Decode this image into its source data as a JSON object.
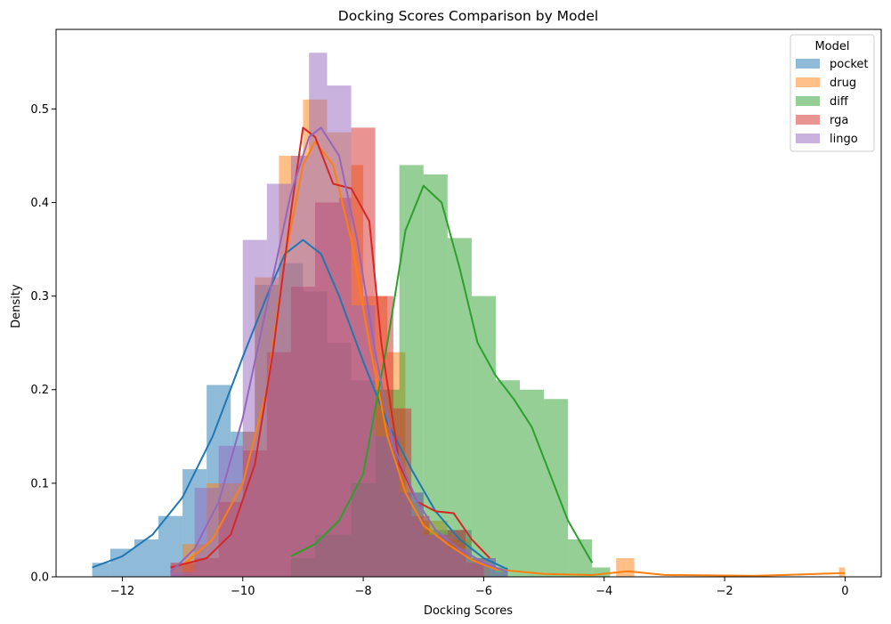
{
  "chart_data": {
    "type": "histogram",
    "title": "Docking Scores Comparison by Model",
    "xlabel": "Docking Scores",
    "ylabel": "Density",
    "xlim": [
      -13.1,
      0.6
    ],
    "ylim": [
      0,
      0.585
    ],
    "xticks": [
      -12,
      -10,
      -8,
      -6,
      -4,
      -2,
      0
    ],
    "xtick_labels": [
      "−12",
      "−10",
      "−8",
      "−6",
      "−4",
      "−2",
      "0"
    ],
    "yticks": [
      0.0,
      0.1,
      0.2,
      0.3,
      0.4,
      0.5
    ],
    "ytick_labels": [
      "0.0",
      "0.1",
      "0.2",
      "0.3",
      "0.4",
      "0.5"
    ],
    "grid": false,
    "legend": {
      "title": "Model",
      "placement": "top-right"
    },
    "series": [
      {
        "name": "pocket",
        "color": "#1f77b4",
        "bins": [
          [
            -12.5,
            -12.2,
            0.015
          ],
          [
            -12.2,
            -11.8,
            0.03
          ],
          [
            -11.8,
            -11.4,
            0.04
          ],
          [
            -11.4,
            -11.0,
            0.065
          ],
          [
            -11.0,
            -10.6,
            0.115
          ],
          [
            -10.6,
            -10.2,
            0.205
          ],
          [
            -10.2,
            -9.8,
            0.155
          ],
          [
            -9.8,
            -9.4,
            0.312
          ],
          [
            -9.4,
            -9.0,
            0.335
          ],
          [
            -9.0,
            -8.6,
            0.305
          ],
          [
            -8.6,
            -8.2,
            0.25
          ],
          [
            -8.2,
            -7.8,
            0.21
          ],
          [
            -7.8,
            -7.4,
            0.15
          ],
          [
            -7.4,
            -7.0,
            0.09
          ],
          [
            -7.0,
            -6.6,
            0.05
          ],
          [
            -6.6,
            -6.2,
            0.05
          ],
          [
            -6.2,
            -5.8,
            0.02
          ],
          [
            -5.8,
            -5.6,
            0.01
          ]
        ],
        "kde": [
          [
            -12.5,
            0.01
          ],
          [
            -12.0,
            0.022
          ],
          [
            -11.5,
            0.045
          ],
          [
            -11.0,
            0.085
          ],
          [
            -10.5,
            0.15
          ],
          [
            -10.0,
            0.235
          ],
          [
            -9.6,
            0.3
          ],
          [
            -9.3,
            0.345
          ],
          [
            -9.0,
            0.36
          ],
          [
            -8.7,
            0.345
          ],
          [
            -8.4,
            0.3
          ],
          [
            -8.0,
            0.23
          ],
          [
            -7.6,
            0.165
          ],
          [
            -7.2,
            0.115
          ],
          [
            -6.8,
            0.07
          ],
          [
            -6.4,
            0.04
          ],
          [
            -6.0,
            0.02
          ],
          [
            -5.6,
            0.008
          ]
        ]
      },
      {
        "name": "drug",
        "color": "#ff7f0e",
        "bins": [
          [
            -11.0,
            -10.6,
            0.035
          ],
          [
            -10.6,
            -10.0,
            0.1
          ],
          [
            -10.0,
            -9.8,
            0.155
          ],
          [
            -9.8,
            -9.4,
            0.32
          ],
          [
            -9.4,
            -9.0,
            0.45
          ],
          [
            -9.0,
            -8.6,
            0.51
          ],
          [
            -8.6,
            -8.2,
            0.475
          ],
          [
            -8.2,
            -8.0,
            0.44
          ],
          [
            -8.0,
            -7.6,
            0.3
          ],
          [
            -7.6,
            -7.3,
            0.24
          ],
          [
            -7.3,
            -7.0,
            0.08
          ],
          [
            -7.0,
            -6.6,
            0.06
          ],
          [
            -6.6,
            -6.2,
            0.04
          ],
          [
            -6.2,
            -5.9,
            0.02
          ],
          [
            -3.8,
            -3.5,
            0.02
          ],
          [
            -0.1,
            0.0,
            0.01
          ]
        ],
        "kde": [
          [
            -11.0,
            0.012
          ],
          [
            -10.5,
            0.04
          ],
          [
            -10.0,
            0.1
          ],
          [
            -9.6,
            0.2
          ],
          [
            -9.3,
            0.34
          ],
          [
            -9.0,
            0.44
          ],
          [
            -8.8,
            0.465
          ],
          [
            -8.5,
            0.44
          ],
          [
            -8.2,
            0.36
          ],
          [
            -7.9,
            0.25
          ],
          [
            -7.6,
            0.15
          ],
          [
            -7.3,
            0.09
          ],
          [
            -7.0,
            0.055
          ],
          [
            -6.6,
            0.035
          ],
          [
            -6.2,
            0.018
          ],
          [
            -5.8,
            0.008
          ],
          [
            -5.0,
            0.003
          ],
          [
            -4.2,
            0.002
          ],
          [
            -3.6,
            0.006
          ],
          [
            -3.0,
            0.002
          ],
          [
            -1.5,
            0.001
          ],
          [
            0.0,
            0.004
          ]
        ]
      },
      {
        "name": "diff",
        "color": "#2ca02c",
        "bins": [
          [
            -9.2,
            -8.8,
            0.02
          ],
          [
            -8.8,
            -8.2,
            0.045
          ],
          [
            -8.2,
            -7.8,
            0.1
          ],
          [
            -7.8,
            -7.4,
            0.2
          ],
          [
            -7.4,
            -7.0,
            0.44
          ],
          [
            -7.0,
            -6.6,
            0.43
          ],
          [
            -6.6,
            -6.2,
            0.362
          ],
          [
            -6.2,
            -5.8,
            0.3
          ],
          [
            -5.8,
            -5.4,
            0.21
          ],
          [
            -5.4,
            -5.0,
            0.2
          ],
          [
            -5.0,
            -4.6,
            0.19
          ],
          [
            -4.6,
            -4.2,
            0.04
          ],
          [
            -4.2,
            -3.9,
            0.01
          ]
        ],
        "kde": [
          [
            -9.2,
            0.022
          ],
          [
            -8.8,
            0.035
          ],
          [
            -8.4,
            0.06
          ],
          [
            -8.0,
            0.11
          ],
          [
            -7.6,
            0.25
          ],
          [
            -7.3,
            0.37
          ],
          [
            -7.0,
            0.418
          ],
          [
            -6.7,
            0.4
          ],
          [
            -6.4,
            0.33
          ],
          [
            -6.1,
            0.25
          ],
          [
            -5.8,
            0.215
          ],
          [
            -5.5,
            0.19
          ],
          [
            -5.2,
            0.16
          ],
          [
            -4.9,
            0.11
          ],
          [
            -4.6,
            0.06
          ],
          [
            -4.2,
            0.015
          ]
        ]
      },
      {
        "name": "rga",
        "color": "#d62728",
        "bins": [
          [
            -11.2,
            -10.8,
            0.015
          ],
          [
            -10.8,
            -10.4,
            0.02
          ],
          [
            -10.4,
            -10.0,
            0.08
          ],
          [
            -10.0,
            -9.6,
            0.135
          ],
          [
            -9.6,
            -9.2,
            0.24
          ],
          [
            -9.2,
            -8.8,
            0.31
          ],
          [
            -8.8,
            -8.4,
            0.4
          ],
          [
            -8.4,
            -8.2,
            0.405
          ],
          [
            -8.2,
            -7.8,
            0.48
          ],
          [
            -7.8,
            -7.5,
            0.3
          ],
          [
            -7.5,
            -7.2,
            0.18
          ],
          [
            -7.2,
            -6.9,
            0.065
          ],
          [
            -6.9,
            -6.6,
            0.045
          ],
          [
            -6.6,
            -6.3,
            0.05
          ],
          [
            -6.3,
            -6.0,
            0.015
          ]
        ],
        "kde": [
          [
            -11.2,
            0.01
          ],
          [
            -10.6,
            0.02
          ],
          [
            -10.2,
            0.045
          ],
          [
            -9.8,
            0.12
          ],
          [
            -9.5,
            0.24
          ],
          [
            -9.2,
            0.39
          ],
          [
            -9.0,
            0.48
          ],
          [
            -8.8,
            0.47
          ],
          [
            -8.5,
            0.42
          ],
          [
            -8.2,
            0.415
          ],
          [
            -7.9,
            0.38
          ],
          [
            -7.7,
            0.25
          ],
          [
            -7.4,
            0.12
          ],
          [
            -7.1,
            0.08
          ],
          [
            -6.8,
            0.07
          ],
          [
            -6.5,
            0.068
          ],
          [
            -6.2,
            0.04
          ],
          [
            -5.9,
            0.02
          ]
        ]
      },
      {
        "name": "lingo",
        "color": "#9467bd",
        "bins": [
          [
            -11.2,
            -10.8,
            0.005
          ],
          [
            -10.8,
            -10.4,
            0.095
          ],
          [
            -10.4,
            -10.0,
            0.14
          ],
          [
            -10.0,
            -9.6,
            0.36
          ],
          [
            -9.6,
            -9.2,
            0.42
          ],
          [
            -9.2,
            -8.9,
            0.45
          ],
          [
            -8.9,
            -8.6,
            0.56
          ],
          [
            -8.6,
            -8.2,
            0.525
          ],
          [
            -8.2,
            -7.8,
            0.29
          ],
          [
            -7.8,
            -7.4,
            0.15
          ],
          [
            -7.4,
            -7.0,
            0.09
          ],
          [
            -7.0,
            -6.6,
            0.045
          ],
          [
            -6.6,
            -6.2,
            0.03
          ],
          [
            -6.2,
            -5.8,
            0.02
          ],
          [
            -5.8,
            -5.6,
            0.005
          ]
        ],
        "kde": [
          [
            -11.2,
            0.005
          ],
          [
            -10.8,
            0.03
          ],
          [
            -10.4,
            0.08
          ],
          [
            -10.0,
            0.17
          ],
          [
            -9.6,
            0.29
          ],
          [
            -9.2,
            0.41
          ],
          [
            -8.9,
            0.47
          ],
          [
            -8.7,
            0.48
          ],
          [
            -8.4,
            0.45
          ],
          [
            -8.1,
            0.36
          ],
          [
            -7.8,
            0.24
          ],
          [
            -7.5,
            0.14
          ],
          [
            -7.1,
            0.08
          ],
          [
            -6.8,
            0.05
          ],
          [
            -6.4,
            0.03
          ],
          [
            -6.0,
            0.015
          ],
          [
            -5.6,
            0.005
          ]
        ]
      }
    ]
  }
}
